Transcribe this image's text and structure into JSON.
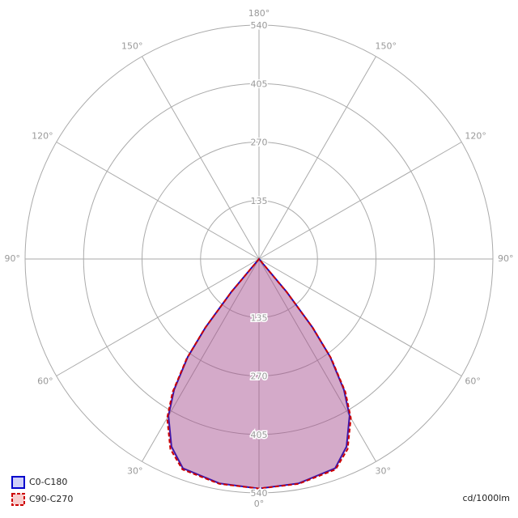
{
  "chart_data": {
    "type": "polar",
    "unit_label": "cd/1000lm",
    "rlim": [
      0,
      540
    ],
    "rticks": [
      135,
      270,
      405,
      540
    ],
    "angle_ticks": [
      {
        "value": 0,
        "label": "0°"
      },
      {
        "value": 30,
        "label": "30°"
      },
      {
        "value": 60,
        "label": "60°"
      },
      {
        "value": 90,
        "label": "90°"
      },
      {
        "value": 120,
        "label": "120°"
      },
      {
        "value": 150,
        "label": "150°"
      },
      {
        "value": 180,
        "label": "180°"
      }
    ],
    "angles": [
      -42,
      -40,
      -38,
      -36,
      -33,
      -30,
      -25,
      -20,
      -10,
      0,
      10,
      20,
      25,
      30,
      33,
      36,
      38,
      40,
      42
    ],
    "grid": true,
    "legend": "bottom-left",
    "series": [
      {
        "name": "C0-C180",
        "color": "#0000cc",
        "fill": "rgba(80,80,230,0.28)",
        "dash": false,
        "values": [
          0,
          100,
          200,
          280,
          360,
          418,
          478,
          514,
          526,
          530,
          526,
          514,
          478,
          418,
          360,
          280,
          200,
          100,
          0
        ]
      },
      {
        "name": "C90-C270",
        "color": "#cc0000",
        "fill": "rgba(230,80,80,0.28)",
        "dash": true,
        "values": [
          0,
          100,
          202,
          284,
          366,
          424,
          484,
          517,
          527,
          530,
          527,
          517,
          484,
          424,
          366,
          284,
          202,
          100,
          0
        ]
      }
    ]
  }
}
